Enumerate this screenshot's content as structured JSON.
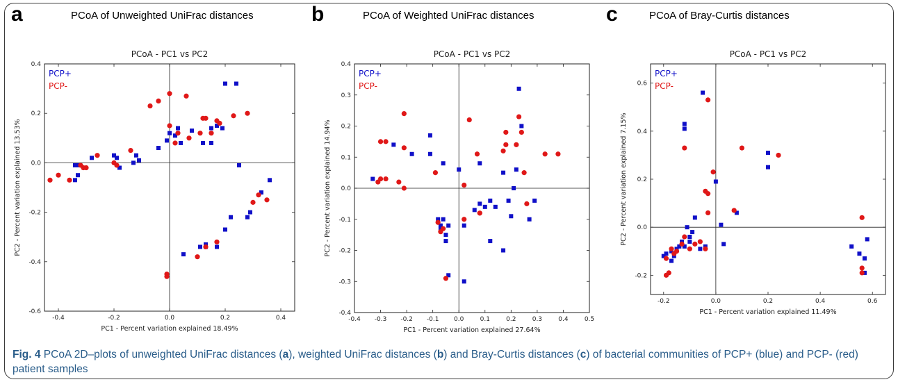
{
  "colors": {
    "pcp_pos": "#1010c8",
    "pcp_neg": "#e01818"
  },
  "panels": [
    {
      "letter": "a",
      "heading": "PCoA of Unweighted UniFrac distances"
    },
    {
      "letter": "b",
      "heading": "PCoA of Weighted UniFrac distances"
    },
    {
      "letter": "c",
      "heading": "PCoA of Bray-Curtis distances"
    }
  ],
  "caption": {
    "fig": "Fig. 4",
    "t1": " PCoA 2D–plots of unweighted UniFrac distances (",
    "a": "a",
    "t2": "), weighted UniFrac distances (",
    "b": "b",
    "t3": ") and Bray-Curtis distances (",
    "c": "c",
    "t4": ") of bacterial communities of PCP+ (blue) and PCP- (red) patient samples"
  },
  "chart_data": [
    {
      "type": "scatter",
      "title": "PCoA - PC1 vs PC2",
      "xlabel": "PC1 - Percent variation explained 18.49%",
      "ylabel": "PC2 - Percent variation explained 13.53%",
      "xlim": [
        -0.45,
        0.45
      ],
      "ylim": [
        -0.6,
        0.4
      ],
      "xticks": [
        "-0.4",
        "-0.2",
        "0.0",
        "0.2",
        "0.4"
      ],
      "yticks": [
        "0.4",
        "0.2",
        "0.0",
        "-0.2",
        "-0.4",
        "-0.6"
      ],
      "legend": [
        "PCP+",
        "PCP-"
      ],
      "series": [
        {
          "name": "PCP+",
          "points": [
            [
              -0.34,
              -0.07
            ],
            [
              -0.33,
              -0.05
            ],
            [
              -0.34,
              -0.01
            ],
            [
              -0.33,
              -0.01
            ],
            [
              -0.28,
              0.02
            ],
            [
              -0.2,
              0.03
            ],
            [
              -0.19,
              0.02
            ],
            [
              -0.18,
              -0.02
            ],
            [
              -0.13,
              0.0
            ],
            [
              -0.12,
              0.03
            ],
            [
              -0.11,
              0.01
            ],
            [
              -0.04,
              0.06
            ],
            [
              -0.01,
              0.09
            ],
            [
              0.0,
              0.12
            ],
            [
              0.02,
              0.11
            ],
            [
              0.03,
              0.14
            ],
            [
              0.04,
              0.08
            ],
            [
              0.08,
              0.13
            ],
            [
              0.12,
              0.08
            ],
            [
              0.15,
              0.14
            ],
            [
              0.17,
              0.15
            ],
            [
              0.19,
              0.14
            ],
            [
              0.2,
              0.32
            ],
            [
              0.24,
              0.32
            ],
            [
              0.25,
              -0.01
            ],
            [
              0.15,
              0.08
            ],
            [
              0.36,
              -0.07
            ],
            [
              0.33,
              -0.12
            ],
            [
              0.29,
              -0.2
            ],
            [
              0.28,
              -0.22
            ],
            [
              0.2,
              -0.27
            ],
            [
              0.17,
              -0.34
            ],
            [
              0.13,
              -0.34
            ],
            [
              0.11,
              -0.34
            ],
            [
              0.05,
              -0.37
            ],
            [
              0.13,
              -0.33
            ],
            [
              0.22,
              -0.22
            ]
          ]
        },
        {
          "name": "PCP-",
          "points": [
            [
              -0.43,
              -0.07
            ],
            [
              -0.4,
              -0.05
            ],
            [
              -0.36,
              -0.07
            ],
            [
              -0.32,
              -0.01
            ],
            [
              -0.31,
              -0.02
            ],
            [
              -0.3,
              -0.02
            ],
            [
              -0.26,
              0.03
            ],
            [
              -0.2,
              0.0
            ],
            [
              -0.19,
              -0.01
            ],
            [
              -0.14,
              0.05
            ],
            [
              -0.07,
              0.23
            ],
            [
              -0.04,
              0.25
            ],
            [
              0.0,
              0.28
            ],
            [
              0.0,
              0.15
            ],
            [
              0.02,
              0.08
            ],
            [
              0.03,
              0.12
            ],
            [
              0.06,
              0.27
            ],
            [
              0.07,
              0.1
            ],
            [
              0.11,
              0.12
            ],
            [
              0.12,
              0.18
            ],
            [
              0.13,
              0.18
            ],
            [
              0.15,
              0.12
            ],
            [
              0.17,
              0.17
            ],
            [
              0.18,
              0.16
            ],
            [
              0.23,
              0.19
            ],
            [
              0.28,
              0.2
            ],
            [
              0.3,
              -0.16
            ],
            [
              0.32,
              -0.13
            ],
            [
              0.35,
              -0.15
            ],
            [
              0.17,
              -0.32
            ],
            [
              0.13,
              -0.34
            ],
            [
              0.1,
              -0.38
            ],
            [
              -0.01,
              -0.45
            ],
            [
              -0.01,
              -0.46
            ]
          ]
        }
      ]
    },
    {
      "type": "scatter",
      "title": "PCoA - PC1 vs PC2",
      "xlabel": "PC1 - Percent variation explained 27.64%",
      "ylabel": "PC2 - Percent variation explained 14.94%",
      "xlim": [
        -0.4,
        0.5
      ],
      "ylim": [
        -0.4,
        0.4
      ],
      "xticks": [
        "-0.4",
        "-0.3",
        "-0.2",
        "-0.1",
        "0.0",
        "0.1",
        "0.2",
        "0.3",
        "0.4",
        "0.5"
      ],
      "yticks": [
        "0.4",
        "0.3",
        "0.2",
        "0.1",
        "0.0",
        "-0.1",
        "-0.2",
        "-0.3",
        "-0.4"
      ],
      "legend": [
        "PCP+",
        "PCP-"
      ],
      "series": [
        {
          "name": "PCP+",
          "points": [
            [
              -0.33,
              0.03
            ],
            [
              -0.25,
              0.14
            ],
            [
              -0.18,
              0.11
            ],
            [
              -0.11,
              0.17
            ],
            [
              -0.11,
              0.11
            ],
            [
              -0.06,
              0.08
            ],
            [
              -0.08,
              -0.1
            ],
            [
              -0.07,
              -0.12
            ],
            [
              -0.07,
              -0.13
            ],
            [
              -0.06,
              -0.1
            ],
            [
              -0.05,
              -0.15
            ],
            [
              -0.05,
              -0.17
            ],
            [
              -0.04,
              -0.12
            ],
            [
              -0.04,
              -0.28
            ],
            [
              0.0,
              0.06
            ],
            [
              0.02,
              -0.12
            ],
            [
              0.02,
              -0.3
            ],
            [
              0.06,
              -0.07
            ],
            [
              0.08,
              -0.05
            ],
            [
              0.1,
              -0.06
            ],
            [
              0.12,
              -0.17
            ],
            [
              0.12,
              -0.04
            ],
            [
              0.14,
              -0.06
            ],
            [
              0.17,
              0.05
            ],
            [
              0.17,
              -0.2
            ],
            [
              0.19,
              -0.04
            ],
            [
              0.2,
              -0.09
            ],
            [
              0.21,
              0.0
            ],
            [
              0.22,
              0.06
            ],
            [
              0.23,
              0.32
            ],
            [
              0.24,
              0.2
            ],
            [
              0.27,
              -0.1
            ],
            [
              0.29,
              -0.04
            ],
            [
              0.08,
              0.08
            ]
          ]
        },
        {
          "name": "PCP-",
          "points": [
            [
              -0.31,
              0.02
            ],
            [
              -0.3,
              0.03
            ],
            [
              -0.28,
              0.03
            ],
            [
              -0.23,
              0.02
            ],
            [
              -0.21,
              0.0
            ],
            [
              -0.21,
              0.13
            ],
            [
              -0.21,
              0.24
            ],
            [
              -0.3,
              0.15
            ],
            [
              -0.28,
              0.15
            ],
            [
              -0.09,
              0.05
            ],
            [
              -0.08,
              -0.11
            ],
            [
              -0.07,
              -0.14
            ],
            [
              -0.06,
              -0.13
            ],
            [
              -0.05,
              -0.29
            ],
            [
              0.02,
              -0.1
            ],
            [
              0.02,
              0.01
            ],
            [
              0.04,
              0.22
            ],
            [
              0.07,
              0.11
            ],
            [
              0.08,
              -0.08
            ],
            [
              0.08,
              -0.08
            ],
            [
              0.17,
              0.12
            ],
            [
              0.18,
              0.14
            ],
            [
              0.18,
              0.18
            ],
            [
              0.22,
              0.14
            ],
            [
              0.23,
              0.23
            ],
            [
              0.24,
              0.18
            ],
            [
              0.25,
              0.05
            ],
            [
              0.26,
              -0.05
            ],
            [
              0.33,
              0.11
            ],
            [
              0.38,
              0.11
            ]
          ]
        }
      ]
    },
    {
      "type": "scatter",
      "title": "PCoA - PC1 vs PC2",
      "xlabel": "PC1 - Percent variation explained 11.49%",
      "ylabel": "PC2 - Percent variation explained 7.15%",
      "xlim": [
        -0.25,
        0.65
      ],
      "ylim": [
        -0.28,
        0.68
      ],
      "xticks": [
        "-0.2",
        "0.0",
        "0.2",
        "0.4",
        "0.6"
      ],
      "xtick_values": [
        -0.2,
        0.0,
        0.2,
        0.4,
        0.6
      ],
      "yticks": [
        "0.6",
        "0.4",
        "0.2",
        "0.0",
        "-0.2"
      ],
      "ytick_values": [
        0.6,
        0.4,
        0.2,
        0.0,
        -0.2
      ],
      "legend": [
        "PCP+",
        "PCP-"
      ],
      "series": [
        {
          "name": "PCP+",
          "points": [
            [
              -0.2,
              -0.12
            ],
            [
              -0.19,
              -0.11
            ],
            [
              -0.17,
              -0.14
            ],
            [
              -0.17,
              -0.1
            ],
            [
              -0.16,
              -0.12
            ],
            [
              -0.15,
              -0.09
            ],
            [
              -0.14,
              -0.08
            ],
            [
              -0.13,
              -0.06
            ],
            [
              -0.12,
              0.41
            ],
            [
              -0.12,
              0.43
            ],
            [
              -0.12,
              -0.08
            ],
            [
              -0.11,
              0.0
            ],
            [
              -0.1,
              -0.04
            ],
            [
              -0.1,
              -0.06
            ],
            [
              -0.09,
              -0.02
            ],
            [
              -0.08,
              0.04
            ],
            [
              -0.06,
              -0.09
            ],
            [
              -0.05,
              0.56
            ],
            [
              -0.04,
              -0.08
            ],
            [
              0.0,
              0.19
            ],
            [
              0.02,
              0.01
            ],
            [
              0.03,
              -0.07
            ],
            [
              0.08,
              0.06
            ],
            [
              0.2,
              0.31
            ],
            [
              0.2,
              0.25
            ],
            [
              0.52,
              -0.08
            ],
            [
              0.55,
              -0.11
            ],
            [
              0.57,
              -0.19
            ],
            [
              0.57,
              -0.13
            ],
            [
              0.58,
              -0.05
            ]
          ]
        },
        {
          "name": "PCP-",
          "points": [
            [
              -0.19,
              -0.13
            ],
            [
              -0.19,
              -0.2
            ],
            [
              -0.18,
              -0.19
            ],
            [
              -0.17,
              -0.09
            ],
            [
              -0.16,
              -0.11
            ],
            [
              -0.15,
              -0.1
            ],
            [
              -0.13,
              -0.07
            ],
            [
              -0.12,
              0.33
            ],
            [
              -0.12,
              -0.04
            ],
            [
              -0.1,
              -0.09
            ],
            [
              -0.08,
              -0.07
            ],
            [
              -0.06,
              -0.06
            ],
            [
              -0.04,
              0.15
            ],
            [
              -0.03,
              0.14
            ],
            [
              -0.03,
              0.53
            ],
            [
              -0.03,
              0.06
            ],
            [
              -0.04,
              -0.09
            ],
            [
              -0.01,
              0.23
            ],
            [
              0.07,
              0.07
            ],
            [
              0.1,
              0.33
            ],
            [
              0.24,
              0.3
            ],
            [
              0.56,
              0.04
            ],
            [
              0.56,
              -0.17
            ],
            [
              0.56,
              -0.19
            ]
          ]
        }
      ]
    }
  ]
}
